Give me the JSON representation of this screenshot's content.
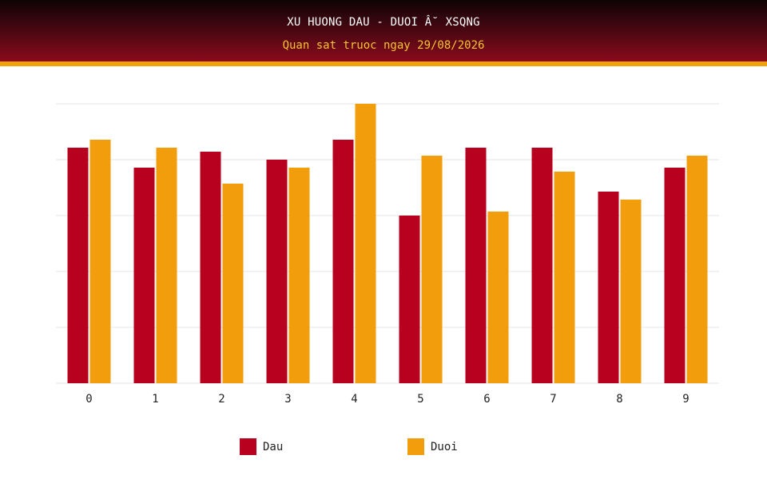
{
  "header": {
    "title": "XU HUONG DAU - DUOI Â˘ XSQNG",
    "subtitle": "Quan sat truoc ngay 29/08/2026"
  },
  "colors": {
    "dau": "#b8001f",
    "duoi": "#f29e0c",
    "grid": "#e6e6e6"
  },
  "chart_data": {
    "type": "bar",
    "categories": [
      "0",
      "1",
      "2",
      "3",
      "4",
      "5",
      "6",
      "7",
      "8",
      "9"
    ],
    "series": [
      {
        "name": "Dau",
        "values": [
          29.5,
          27,
          29,
          28,
          30.5,
          21,
          29.5,
          29.5,
          24,
          27
        ]
      },
      {
        "name": "Duoi",
        "values": [
          30.5,
          29.5,
          25,
          27,
          35,
          28.5,
          21.5,
          26.5,
          23,
          28.5
        ]
      }
    ],
    "ylim": [
      0,
      35
    ],
    "yticks": [
      0,
      7,
      14,
      21,
      28,
      35
    ],
    "grid": true,
    "legend_position": "bottom"
  }
}
